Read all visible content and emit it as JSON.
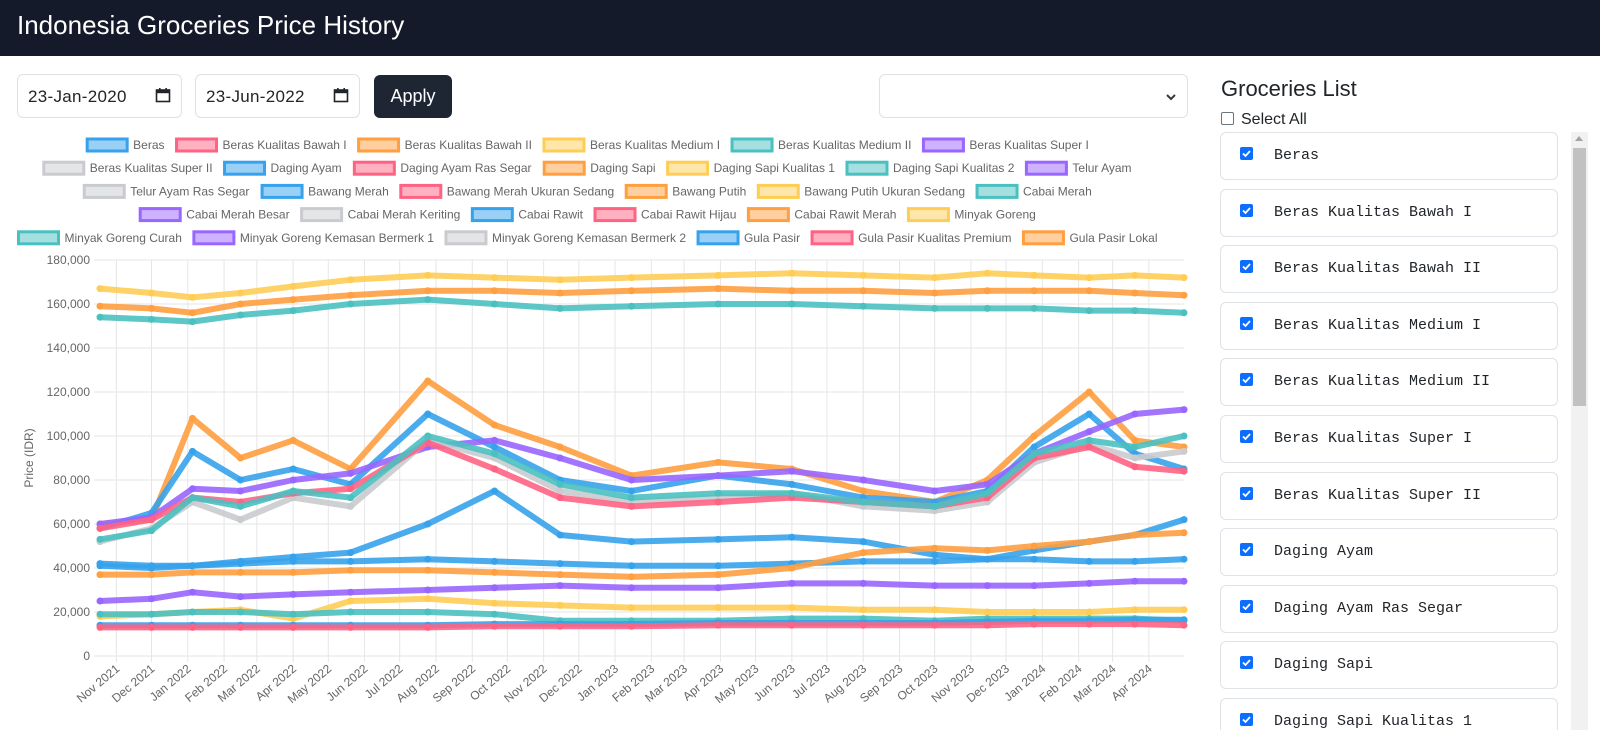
{
  "app": {
    "title": "Indonesia Groceries Price History"
  },
  "filters": {
    "start_date": "23-Jan-2020",
    "end_date": "23-Jun-2022",
    "apply_label": "Apply",
    "select_value": ""
  },
  "sidebar": {
    "title": "Groceries List",
    "select_all_label": "Select All",
    "select_all_checked": false,
    "items": [
      {
        "label": "Beras",
        "checked": true
      },
      {
        "label": "Beras Kualitas Bawah I",
        "checked": true
      },
      {
        "label": "Beras Kualitas Bawah II",
        "checked": true
      },
      {
        "label": "Beras Kualitas Medium I",
        "checked": true
      },
      {
        "label": "Beras Kualitas Medium II",
        "checked": true
      },
      {
        "label": "Beras Kualitas Super I",
        "checked": true
      },
      {
        "label": "Beras Kualitas Super II",
        "checked": true
      },
      {
        "label": "Daging Ayam",
        "checked": true
      },
      {
        "label": "Daging Ayam Ras Segar",
        "checked": true
      },
      {
        "label": "Daging Sapi",
        "checked": true
      },
      {
        "label": "Daging Sapi Kualitas 1",
        "checked": true
      }
    ]
  },
  "icons": {
    "calendar": "calendar-icon",
    "select": "chevron-down-icon",
    "check": "check-icon"
  },
  "colors": {
    "header_bg": "#141a29",
    "palette": [
      "#36a2eb",
      "#ff6384",
      "#ff9f40",
      "#ffcd56",
      "#4bc0c0",
      "#9966ff",
      "#c9cbcf"
    ]
  },
  "chart_data": {
    "type": "line",
    "ylabel": "Price (IDR)",
    "ylim": [
      0,
      180000
    ],
    "yticks": [
      0,
      20000,
      40000,
      60000,
      80000,
      100000,
      120000,
      140000,
      160000,
      180000
    ],
    "ytick_labels": [
      "0",
      "20,000",
      "40,000",
      "60,000",
      "80,000",
      "100,000",
      "120,000",
      "140,000",
      "160,000",
      "180,000"
    ],
    "x_start": "2021-10-18",
    "x_end": "2024-05-01",
    "xtick_labels": [
      "Nov 2021",
      "Dec 2021",
      "Jan 2022",
      "Feb 2022",
      "Mar 2022",
      "Apr 2022",
      "May 2022",
      "Jun 2022",
      "Jul 2022",
      "Aug 2022",
      "Sep 2022",
      "Oct 2022",
      "Nov 2022",
      "Dec 2022",
      "Jan 2023",
      "Feb 2023",
      "Mar 2023",
      "Apr 2023",
      "May 2023",
      "Jun 2023",
      "Jul 2023",
      "Aug 2023",
      "Sep 2023",
      "Oct 2023",
      "Nov 2023",
      "Dec 2023",
      "Jan 2024",
      "Feb 2024",
      "Mar 2024",
      "Apr 2024"
    ],
    "grid": true,
    "legend_position": "top",
    "legend": [
      "Beras",
      "Beras Kualitas Bawah I",
      "Beras Kualitas Bawah II",
      "Beras Kualitas Medium I",
      "Beras Kualitas Medium II",
      "Beras Kualitas Super I",
      "Beras Kualitas Super II",
      "Daging Ayam",
      "Daging Ayam Ras Segar",
      "Daging Sapi",
      "Daging Sapi Kualitas 1",
      "Daging Sapi Kualitas 2",
      "Telur Ayam",
      "Telur Ayam Ras Segar",
      "Bawang Merah",
      "Bawang Merah Ukuran Sedang",
      "Bawang Putih",
      "Bawang Putih Ukuran Sedang",
      "Cabai Merah",
      "Cabai Merah Besar",
      "Cabai Merah Keriting",
      "Cabai Rawit",
      "Cabai Rawit Hijau",
      "Cabai Rawit Merah",
      "Minyak Goreng",
      "Minyak Goreng Curah",
      "Minyak Goreng Kemasan Bermerk 1",
      "Minyak Goreng Kemasan Bermerk 2",
      "Gula Pasir",
      "Gula Pasir Kualitas Premium",
      "Gula Pasir Lokal"
    ],
    "dates": [
      "2021-10-18",
      "2021-12-01",
      "2022-01-05",
      "2022-02-15",
      "2022-04-01",
      "2022-05-20",
      "2022-07-25",
      "2022-09-20",
      "2022-11-15",
      "2023-01-15",
      "2023-03-30",
      "2023-06-01",
      "2023-08-01",
      "2023-10-01",
      "2023-11-15",
      "2023-12-25",
      "2024-02-10",
      "2024-03-20",
      "2024-05-01"
    ],
    "series": [
      {
        "name": "Daging Sapi Kualitas 1",
        "color": "#ffcd56",
        "values": [
          167000,
          165000,
          163000,
          165000,
          168000,
          171000,
          173000,
          172000,
          171000,
          172000,
          173000,
          174000,
          173000,
          172000,
          174000,
          173000,
          172000,
          173000,
          172000
        ]
      },
      {
        "name": "Daging Sapi",
        "color": "#ff9f40",
        "values": [
          159000,
          158000,
          156000,
          160000,
          162000,
          164000,
          166000,
          166000,
          165000,
          166000,
          167000,
          166000,
          166000,
          165000,
          166000,
          166000,
          166000,
          165000,
          164000
        ]
      },
      {
        "name": "Daging Sapi Kualitas 2",
        "color": "#4bc0c0",
        "values": [
          154000,
          153000,
          152000,
          155000,
          157000,
          160000,
          162000,
          160000,
          158000,
          159000,
          160000,
          160000,
          159000,
          158000,
          158000,
          158000,
          157000,
          157000,
          156000
        ]
      },
      {
        "name": "Bawang Putih",
        "color": "#ff9f40",
        "values": [
          60000,
          62000,
          108000,
          90000,
          98000,
          85000,
          125000,
          105000,
          95000,
          82000,
          88000,
          85000,
          75000,
          70000,
          80000,
          100000,
          120000,
          98000,
          95000
        ]
      },
      {
        "name": "Cabai Merah",
        "color": "#36a2eb",
        "values": [
          58000,
          65000,
          93000,
          80000,
          85000,
          78000,
          110000,
          95000,
          80000,
          75000,
          82000,
          78000,
          72000,
          70000,
          75000,
          95000,
          110000,
          92000,
          85000
        ]
      },
      {
        "name": "Cabai Merah Besar",
        "color": "#9966ff",
        "values": [
          60000,
          63000,
          76000,
          75000,
          80000,
          83000,
          95000,
          98000,
          90000,
          80000,
          82000,
          84000,
          80000,
          75000,
          78000,
          92000,
          102000,
          110000,
          112000
        ]
      },
      {
        "name": "Cabai Merah Keriting",
        "color": "#c9cbcf",
        "values": [
          52000,
          58000,
          70000,
          62000,
          72000,
          68000,
          98000,
          90000,
          75000,
          70000,
          72000,
          74000,
          68000,
          66000,
          70000,
          88000,
          96000,
          90000,
          93000
        ]
      },
      {
        "name": "Cabai Rawit Hijau",
        "color": "#ff6384",
        "values": [
          58000,
          62000,
          72000,
          70000,
          74000,
          76000,
          97000,
          85000,
          72000,
          68000,
          70000,
          72000,
          70000,
          68000,
          72000,
          90000,
          95000,
          86000,
          84000
        ]
      },
      {
        "name": "Cabai Rawit",
        "color": "#4bc0c0",
        "values": [
          53000,
          57000,
          72000,
          68000,
          75000,
          72000,
          100000,
          92000,
          78000,
          72000,
          74000,
          74000,
          70000,
          68000,
          74000,
          92000,
          98000,
          95000,
          100000
        ]
      },
      {
        "name": "Bawang Merah",
        "color": "#36a2eb",
        "values": [
          42000,
          41000,
          41000,
          43000,
          45000,
          47000,
          60000,
          75000,
          55000,
          52000,
          53000,
          54000,
          52000,
          46000,
          44000,
          48000,
          52000,
          55000,
          62000
        ]
      },
      {
        "name": "Daging Ayam",
        "color": "#36a2eb",
        "values": [
          41000,
          40000,
          41000,
          42000,
          43000,
          43000,
          44000,
          43000,
          42000,
          41000,
          41000,
          42000,
          43000,
          43000,
          44000,
          44000,
          43000,
          43000,
          44000
        ]
      },
      {
        "name": "Bawang Merah Ukuran Sedang",
        "color": "#ff9f40",
        "values": [
          37000,
          37000,
          38000,
          38000,
          38000,
          39000,
          39000,
          38000,
          37000,
          36000,
          37000,
          40000,
          47000,
          49000,
          48000,
          50000,
          52000,
          55000,
          56000
        ]
      },
      {
        "name": "Telur Ayam",
        "color": "#9966ff",
        "values": [
          25000,
          26000,
          29000,
          27000,
          28000,
          29000,
          30000,
          31000,
          32000,
          31000,
          31000,
          33000,
          33000,
          32000,
          32000,
          32000,
          33000,
          34000,
          34000
        ]
      },
      {
        "name": "Minyak Goreng",
        "color": "#ffcd56",
        "values": [
          18000,
          19000,
          20000,
          21000,
          17000,
          25000,
          26000,
          24000,
          23000,
          22000,
          22000,
          22000,
          21000,
          21000,
          20000,
          20000,
          20000,
          21000,
          21000
        ]
      },
      {
        "name": "Minyak Goreng Curah",
        "color": "#4bc0c0",
        "values": [
          19000,
          19000,
          20000,
          20000,
          19000,
          20000,
          20000,
          19000,
          16000,
          16000,
          16000,
          17000,
          17000,
          16000,
          17000,
          17000,
          17000,
          17000,
          16000
        ]
      },
      {
        "name": "Gula Pasir",
        "color": "#36a2eb",
        "values": [
          14000,
          14000,
          14000,
          14000,
          14000,
          14000,
          14000,
          14500,
          14500,
          14500,
          15000,
          15000,
          15000,
          15000,
          15500,
          16000,
          16000,
          16500,
          16500
        ]
      },
      {
        "name": "Gula Pasir Kualitas Premium",
        "color": "#ff6384",
        "values": [
          13000,
          13000,
          13000,
          13000,
          13000,
          13000,
          13000,
          13500,
          13500,
          13500,
          14000,
          14000,
          14000,
          14000,
          14000,
          14500,
          14500,
          14500,
          14000
        ]
      }
    ]
  }
}
